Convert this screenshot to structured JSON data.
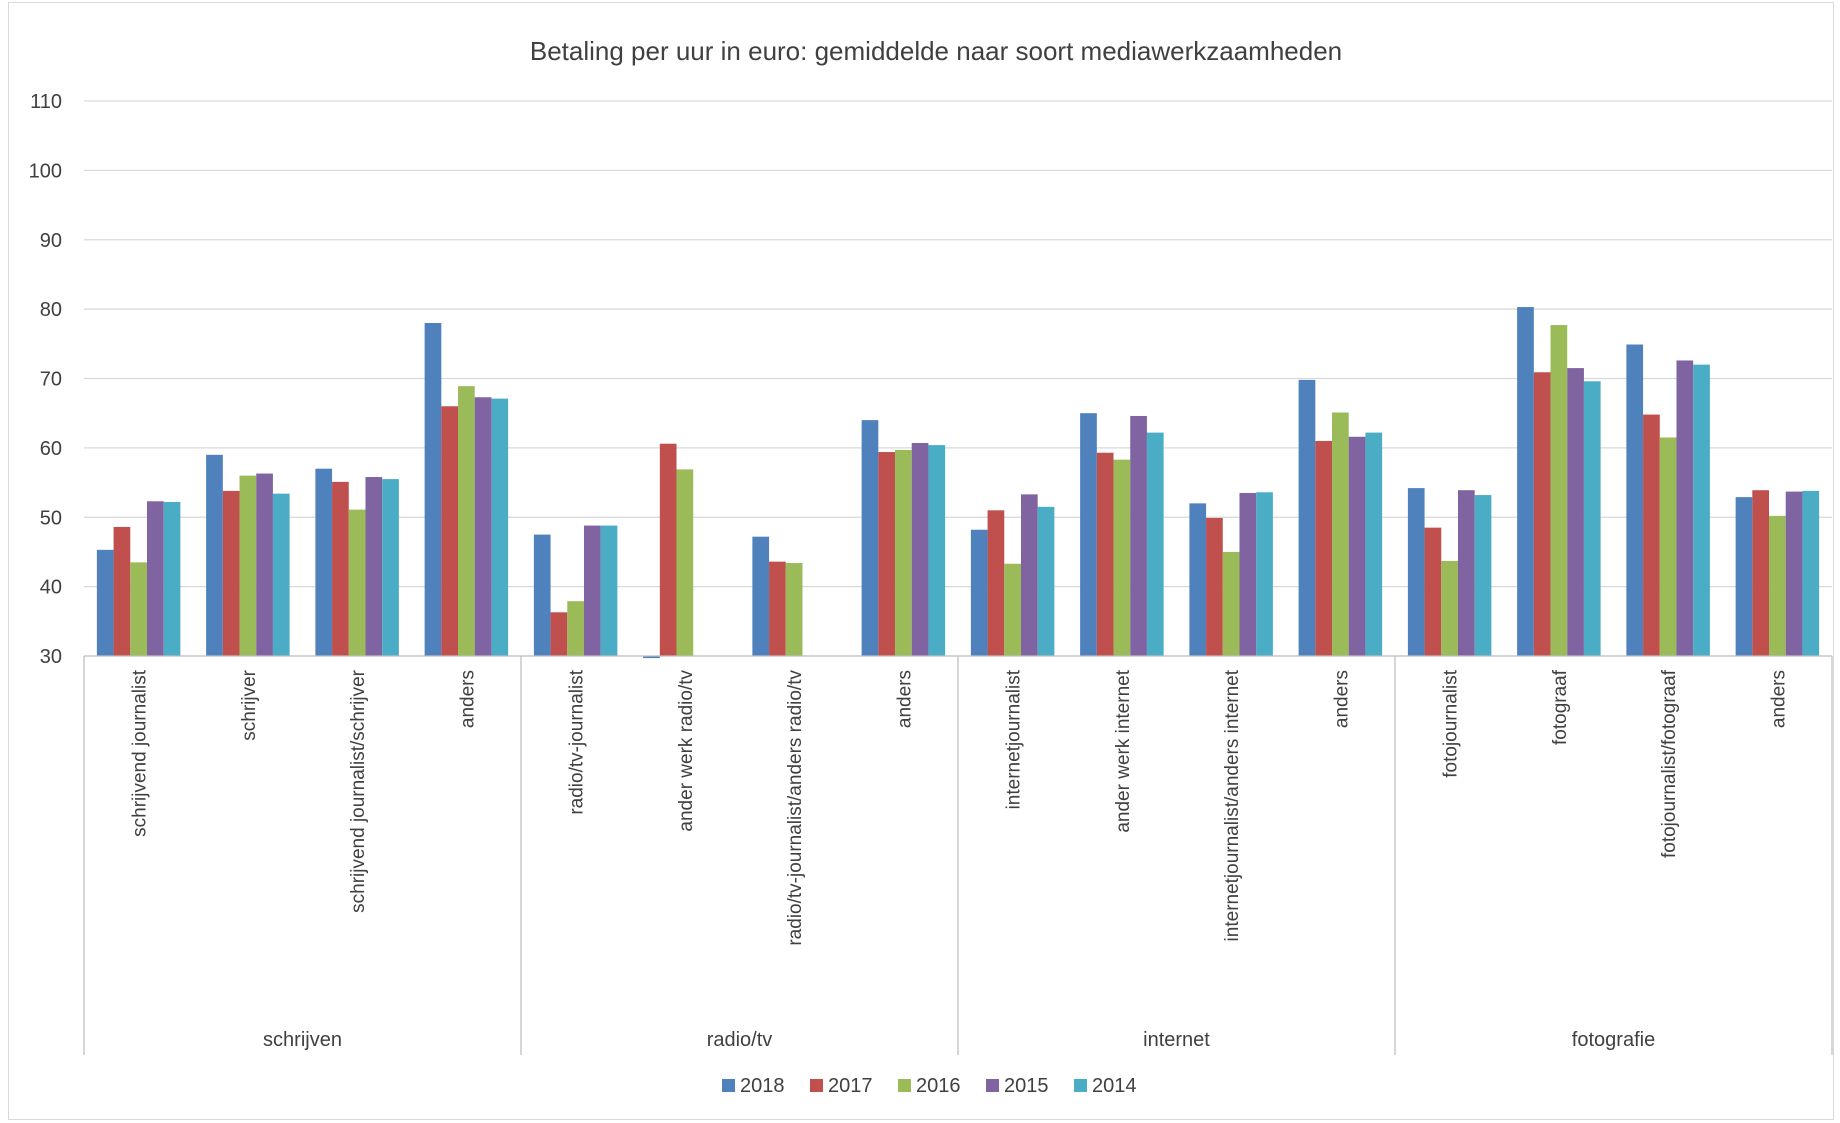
{
  "chart_data": {
    "type": "bar",
    "title": "Betaling per uur in euro: gemiddelde naar soort mediawerkzaamheden",
    "xlabel": "",
    "ylabel": "",
    "ylim": [
      30,
      110
    ],
    "yticks": [
      30,
      40,
      50,
      60,
      70,
      80,
      90,
      100,
      110
    ],
    "grid": true,
    "legend_position": "bottom",
    "groups": [
      {
        "name": "schrijven",
        "categories": [
          "schrijvend journalist",
          "schrijver",
          "schrijvend journalist/schrijver",
          "anders"
        ]
      },
      {
        "name": "radio/tv",
        "categories": [
          "radio/tv-journalist",
          "ander werk radio/tv",
          "radio/tv-journalist/anders radio/tv",
          "anders"
        ]
      },
      {
        "name": "internet",
        "categories": [
          "internetjournalist",
          "ander werk internet",
          "internetjournalist/anders internet",
          "anders"
        ]
      },
      {
        "name": "fotografie",
        "categories": [
          "fotojournalist",
          "fotograaf",
          "fotojournalist/fotograaf",
          "anders"
        ]
      }
    ],
    "series": [
      {
        "name": "2018",
        "color": "#4f81bd",
        "values": [
          45.3,
          59.0,
          57.0,
          78.0,
          47.5,
          29.7,
          47.2,
          64.0,
          48.2,
          65.0,
          52.0,
          69.8,
          54.2,
          80.3,
          74.9,
          52.9
        ]
      },
      {
        "name": "2017",
        "color": "#c0504d",
        "values": [
          48.6,
          53.8,
          55.1,
          66.0,
          36.3,
          60.6,
          43.6,
          59.4,
          51.0,
          59.3,
          49.9,
          61.0,
          48.5,
          70.9,
          64.8,
          53.9
        ]
      },
      {
        "name": "2016",
        "color": "#9bbb59",
        "values": [
          43.5,
          56.0,
          51.1,
          68.9,
          37.9,
          56.9,
          43.4,
          59.7,
          43.3,
          58.3,
          45.0,
          65.1,
          43.7,
          77.7,
          61.5,
          50.2
        ]
      },
      {
        "name": "2015",
        "color": "#8064a2",
        "values": [
          52.3,
          56.3,
          55.8,
          67.3,
          48.8,
          null,
          null,
          60.7,
          53.3,
          64.6,
          53.5,
          61.6,
          53.9,
          71.5,
          72.6,
          53.7
        ]
      },
      {
        "name": "2014",
        "color": "#4bacc6",
        "values": [
          52.2,
          53.4,
          55.5,
          67.1,
          48.8,
          null,
          null,
          60.4,
          51.5,
          62.2,
          53.6,
          62.2,
          53.2,
          69.6,
          72.0,
          53.8
        ]
      }
    ]
  }
}
